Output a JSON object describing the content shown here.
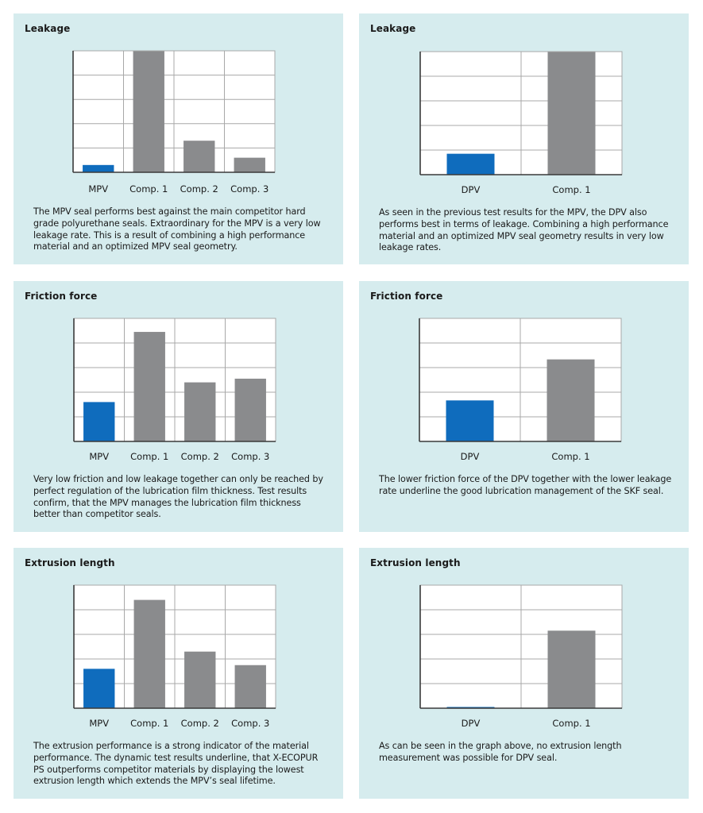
{
  "colors": {
    "primary": "#0f6cbd",
    "competitor": "#8a8b8d",
    "panel_bg": "#d6ecee",
    "grid": "#a8a8a8",
    "axis": "#3a3a3a"
  },
  "panels": [
    {
      "title": "Leakage",
      "caption": "The MPV seal performs best against the main competitor hard grade polyurethane seals. Extraordinary for the MPV is a very low leakage rate. This is a result of combining a high performance material and an optimized MPV seal geometry."
    },
    {
      "title": "Leakage",
      "caption": "As seen in the previous test results for the MPV, the DPV also performs best in terms of leakage. Combining a high performance material and an optimized MPV seal geometry results in very low leakage rates."
    },
    {
      "title": "Friction force",
      "caption": "Very low friction and low leakage together can only be reached by perfect regulation of the lubrication film thickness. Test results confirm, that the MPV manages the lubrication film thickness better than competitor seals."
    },
    {
      "title": "Friction force",
      "caption": "The lower friction force of the DPV together with the lower leakage rate underline the good lubrication management of the SKF seal."
    },
    {
      "title": "Extrusion length",
      "caption": "The extrusion performance is a strong indicator of the material performance. The dynamic test results underline, that X-ECOPUR PS outperforms competitor materials by displaying the lowest extrusion length which extends the MPV’s seal lifetime."
    },
    {
      "title": "Extrusion length",
      "caption": "As can be seen in the graph above, no extrusion length measurement was possible for DPV seal."
    }
  ],
  "chart_data": [
    {
      "type": "bar",
      "title": "Leakage",
      "categories": [
        "MPV",
        "Comp. 1",
        "Comp. 2",
        "Comp. 3"
      ],
      "values": [
        0.3,
        5.0,
        1.3,
        0.6
      ],
      "ylim": [
        0,
        5
      ],
      "grid": true,
      "highlight_index": 0
    },
    {
      "type": "bar",
      "title": "Leakage",
      "categories": [
        "DPV",
        "Comp. 1"
      ],
      "values": [
        0.85,
        5.0
      ],
      "ylim": [
        0,
        5
      ],
      "grid": true,
      "highlight_index": 0
    },
    {
      "type": "bar",
      "title": "Friction force",
      "categories": [
        "MPV",
        "Comp. 1",
        "Comp. 2",
        "Comp. 3"
      ],
      "values": [
        1.6,
        4.45,
        2.4,
        2.55
      ],
      "ylim": [
        0,
        5
      ],
      "grid": true,
      "highlight_index": 0
    },
    {
      "type": "bar",
      "title": "Friction force",
      "categories": [
        "DPV",
        "Comp. 1"
      ],
      "values": [
        2.0,
        4.0
      ],
      "ylim": [
        0,
        6
      ],
      "grid": true,
      "highlight_index": 0
    },
    {
      "type": "bar",
      "title": "Extrusion length",
      "categories": [
        "MPV",
        "Comp. 1",
        "Comp. 2",
        "Comp. 3"
      ],
      "values": [
        1.6,
        4.4,
        2.3,
        1.75
      ],
      "ylim": [
        0,
        5
      ],
      "grid": true,
      "highlight_index": 0
    },
    {
      "type": "bar",
      "title": "Extrusion length",
      "categories": [
        "DPV",
        "Comp. 1"
      ],
      "values": [
        0.05,
        3.15
      ],
      "ylim": [
        0,
        5
      ],
      "grid": true,
      "highlight_index": 0
    }
  ]
}
